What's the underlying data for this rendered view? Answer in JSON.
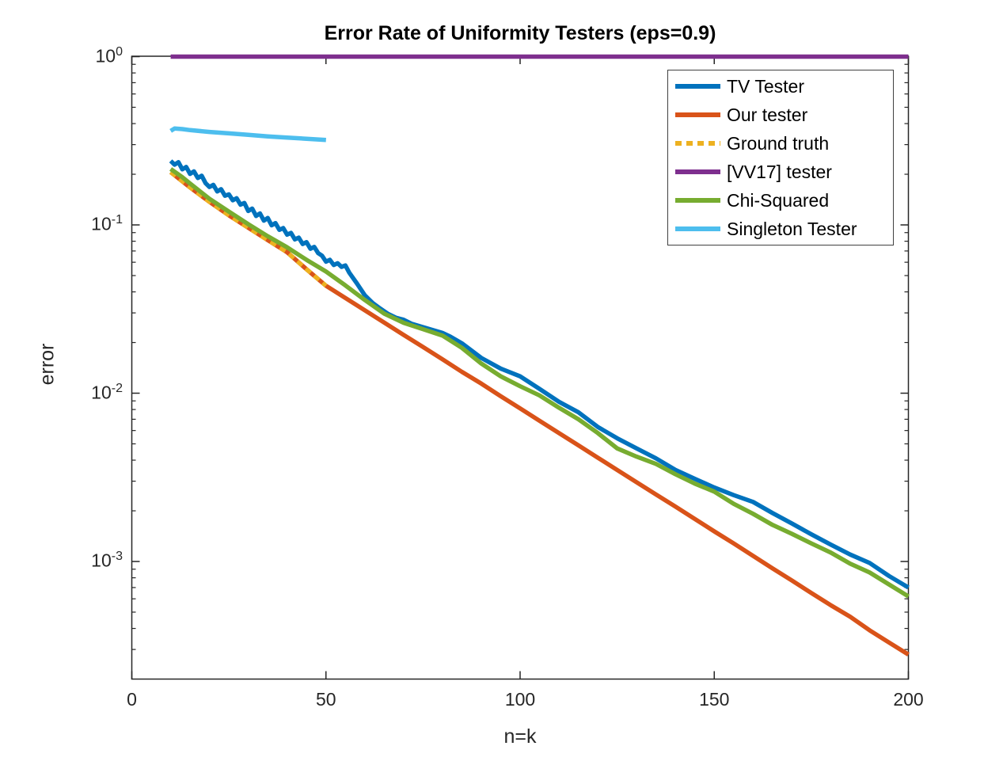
{
  "title": "Error Rate of Uniformity Testers (eps=0.9)",
  "chart_data": {
    "type": "line",
    "title": "Error Rate of Uniformity Testers (eps=0.9)",
    "xlabel": "n=k",
    "ylabel": "error",
    "xlim": [
      0,
      200
    ],
    "ylim": [
      0.0002,
      1
    ],
    "yscale": "log",
    "grid": false,
    "legend_position": "top-right",
    "xticks": [
      0,
      50,
      100,
      150,
      200
    ],
    "ytick_exponents": [
      0,
      -1,
      -2,
      -3
    ],
    "axis_color": "#262626",
    "series": [
      {
        "name": "TV Tester",
        "color": "#0072BD",
        "style": "solid",
        "points": [
          [
            10,
            0.24
          ],
          [
            11,
            0.228
          ],
          [
            12,
            0.236
          ],
          [
            13,
            0.214
          ],
          [
            14,
            0.221
          ],
          [
            15,
            0.201
          ],
          [
            16,
            0.208
          ],
          [
            17,
            0.19
          ],
          [
            18,
            0.196
          ],
          [
            19,
            0.177
          ],
          [
            20,
            0.168
          ],
          [
            21,
            0.173
          ],
          [
            22,
            0.158
          ],
          [
            23,
            0.163
          ],
          [
            24,
            0.149
          ],
          [
            25,
            0.152
          ],
          [
            26,
            0.14
          ],
          [
            27,
            0.144
          ],
          [
            28,
            0.132
          ],
          [
            29,
            0.135
          ],
          [
            30,
            0.121
          ],
          [
            31,
            0.125
          ],
          [
            32,
            0.113
          ],
          [
            33,
            0.117
          ],
          [
            34,
            0.106
          ],
          [
            35,
            0.11
          ],
          [
            36,
            0.0995
          ],
          [
            37,
            0.1025
          ],
          [
            38,
            0.0935
          ],
          [
            39,
            0.0958
          ],
          [
            40,
            0.0875
          ],
          [
            41,
            0.0896
          ],
          [
            42,
            0.082
          ],
          [
            43,
            0.084
          ],
          [
            44,
            0.077
          ],
          [
            45,
            0.079
          ],
          [
            46,
            0.0722
          ],
          [
            47,
            0.074
          ],
          [
            48,
            0.068
          ],
          [
            49,
            0.0656
          ],
          [
            50,
            0.0605
          ],
          [
            51,
            0.062
          ],
          [
            52,
            0.0578
          ],
          [
            53,
            0.0592
          ],
          [
            54,
            0.0563
          ],
          [
            55,
            0.0574
          ],
          [
            56,
            0.052
          ],
          [
            58,
            0.0448
          ],
          [
            60,
            0.0382
          ],
          [
            62,
            0.0344
          ],
          [
            64,
            0.0318
          ],
          [
            66,
            0.0296
          ],
          [
            68,
            0.0281
          ],
          [
            70,
            0.0273
          ],
          [
            72,
            0.0259
          ],
          [
            75,
            0.0247
          ],
          [
            80,
            0.0228
          ],
          [
            82,
            0.0217
          ],
          [
            85,
            0.0198
          ],
          [
            90,
            0.0162
          ],
          [
            95,
            0.014
          ],
          [
            100,
            0.0126
          ],
          [
            105,
            0.0106
          ],
          [
            110,
            0.0089
          ],
          [
            115,
            0.0077
          ],
          [
            120,
            0.0063
          ],
          [
            125,
            0.0054
          ],
          [
            130,
            0.0047
          ],
          [
            135,
            0.0041
          ],
          [
            140,
            0.0035
          ],
          [
            145,
            0.0031
          ],
          [
            150,
            0.00275
          ],
          [
            155,
            0.00248
          ],
          [
            160,
            0.00226
          ],
          [
            165,
            0.00194
          ],
          [
            170,
            0.00168
          ],
          [
            175,
            0.00145
          ],
          [
            180,
            0.00126
          ],
          [
            185,
            0.0011
          ],
          [
            190,
            0.00098
          ],
          [
            195,
            0.00082
          ],
          [
            200,
            0.0007
          ]
        ]
      },
      {
        "name": "Our tester",
        "color": "#D95319",
        "style": "solid",
        "points": [
          [
            10,
            0.206
          ],
          [
            15,
            0.167
          ],
          [
            20,
            0.137
          ],
          [
            25,
            0.114
          ],
          [
            30,
            0.0962
          ],
          [
            35,
            0.0812
          ],
          [
            40,
            0.0688
          ],
          [
            45,
            0.0545
          ],
          [
            50,
            0.0435
          ],
          [
            55,
            0.0368
          ],
          [
            60,
            0.0311
          ],
          [
            65,
            0.0263
          ],
          [
            70,
            0.0222
          ],
          [
            75,
            0.0188
          ],
          [
            80,
            0.0159
          ],
          [
            85,
            0.0134
          ],
          [
            90,
            0.0114
          ],
          [
            95,
            0.0096
          ],
          [
            100,
            0.00812
          ],
          [
            105,
            0.00686
          ],
          [
            110,
            0.0058
          ],
          [
            115,
            0.0049
          ],
          [
            120,
            0.00414
          ],
          [
            125,
            0.0035
          ],
          [
            130,
            0.00296
          ],
          [
            135,
            0.0025
          ],
          [
            140,
            0.00212
          ],
          [
            145,
            0.00179
          ],
          [
            150,
            0.00151
          ],
          [
            155,
            0.00128
          ],
          [
            160,
            0.00108
          ],
          [
            165,
            0.00091
          ],
          [
            170,
            0.00077
          ],
          [
            175,
            0.00065
          ],
          [
            180,
            0.00055
          ],
          [
            185,
            0.00047
          ],
          [
            190,
            0.00039
          ],
          [
            195,
            0.00033
          ],
          [
            200,
            0.00028
          ]
        ]
      },
      {
        "name": "Ground truth",
        "color": "#EDB120",
        "style": "dotted",
        "points": [
          [
            10,
            0.206
          ],
          [
            15,
            0.167
          ],
          [
            20,
            0.137
          ],
          [
            25,
            0.114
          ],
          [
            30,
            0.0962
          ],
          [
            35,
            0.0812
          ],
          [
            40,
            0.0688
          ],
          [
            45,
            0.0545
          ],
          [
            50,
            0.0435
          ]
        ]
      },
      {
        "name": "[VV17] tester",
        "color": "#7E2F8E",
        "style": "solid",
        "points": [
          [
            10,
            1.0
          ],
          [
            50,
            1.0
          ],
          [
            100,
            1.0
          ],
          [
            150,
            1.0
          ],
          [
            200,
            1.0
          ]
        ]
      },
      {
        "name": "Chi-Squared",
        "color": "#77AC30",
        "style": "solid",
        "points": [
          [
            10,
            0.215
          ],
          [
            13,
            0.192
          ],
          [
            15,
            0.176
          ],
          [
            20,
            0.143
          ],
          [
            25,
            0.12
          ],
          [
            30,
            0.101
          ],
          [
            35,
            0.0856
          ],
          [
            40,
            0.0736
          ],
          [
            45,
            0.062
          ],
          [
            50,
            0.0528
          ],
          [
            55,
            0.0437
          ],
          [
            60,
            0.0358
          ],
          [
            65,
            0.0297
          ],
          [
            70,
            0.0262
          ],
          [
            75,
            0.024
          ],
          [
            80,
            0.022
          ],
          [
            85,
            0.0186
          ],
          [
            90,
            0.015
          ],
          [
            95,
            0.0126
          ],
          [
            100,
            0.011
          ],
          [
            105,
            0.0097
          ],
          [
            110,
            0.0082
          ],
          [
            115,
            0.007
          ],
          [
            120,
            0.0058
          ],
          [
            125,
            0.0047
          ],
          [
            130,
            0.0042
          ],
          [
            135,
            0.0038
          ],
          [
            140,
            0.0033
          ],
          [
            145,
            0.0029
          ],
          [
            150,
            0.0026
          ],
          [
            155,
            0.0022
          ],
          [
            160,
            0.00192
          ],
          [
            165,
            0.00165
          ],
          [
            170,
            0.00146
          ],
          [
            175,
            0.00128
          ],
          [
            180,
            0.00113
          ],
          [
            185,
            0.00097
          ],
          [
            190,
            0.00086
          ],
          [
            195,
            0.00073
          ],
          [
            200,
            0.00062
          ]
        ]
      },
      {
        "name": "Singleton Tester",
        "color": "#4DBEEE",
        "style": "solid",
        "points": [
          [
            10,
            0.362
          ],
          [
            11,
            0.374
          ],
          [
            13,
            0.371
          ],
          [
            15,
            0.366
          ],
          [
            20,
            0.357
          ],
          [
            25,
            0.35
          ],
          [
            30,
            0.343
          ],
          [
            35,
            0.336
          ],
          [
            40,
            0.33
          ],
          [
            45,
            0.325
          ],
          [
            50,
            0.32
          ]
        ]
      }
    ]
  }
}
